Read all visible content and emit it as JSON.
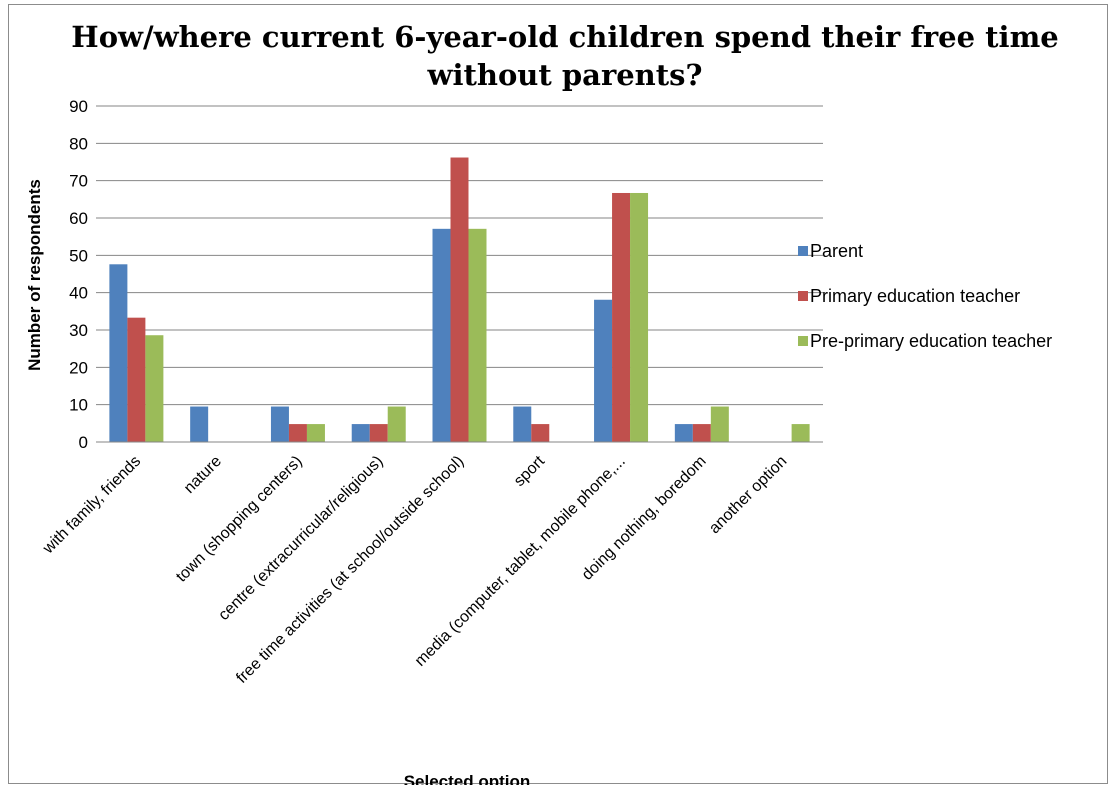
{
  "chart_data": {
    "type": "bar",
    "title_line1": "How/where current 6-year-old children spend their free time",
    "title_line2": "without parents?",
    "xlabel": "Selected option",
    "ylabel": "Number of respondents",
    "ylim": [
      0,
      90
    ],
    "yticks": [
      0,
      10,
      20,
      30,
      40,
      50,
      60,
      70,
      80,
      90
    ],
    "grid": true,
    "legend_position": "right",
    "categories": [
      "with family, friends",
      "nature",
      "town (shopping centers)",
      "centre (extracurricular/religious)",
      "free time activities (at school/outside school)",
      "sport",
      "media (computer, tablet, mobile phone,...",
      "doing nothing, boredom",
      "another option"
    ],
    "series": [
      {
        "name": "Parent",
        "color": "#4f81bd",
        "values": [
          47.6,
          9.5,
          9.5,
          4.8,
          57.1,
          9.5,
          38.1,
          4.8,
          0
        ]
      },
      {
        "name": "Primary education teacher",
        "color": "#c0504d",
        "values": [
          33.3,
          0,
          4.8,
          4.8,
          76.2,
          4.8,
          66.7,
          4.8,
          0
        ]
      },
      {
        "name": "Pre-primary education teacher",
        "color": "#9bbb59",
        "values": [
          28.6,
          0,
          4.8,
          9.5,
          57.1,
          0,
          66.7,
          9.5,
          4.8
        ]
      }
    ]
  }
}
